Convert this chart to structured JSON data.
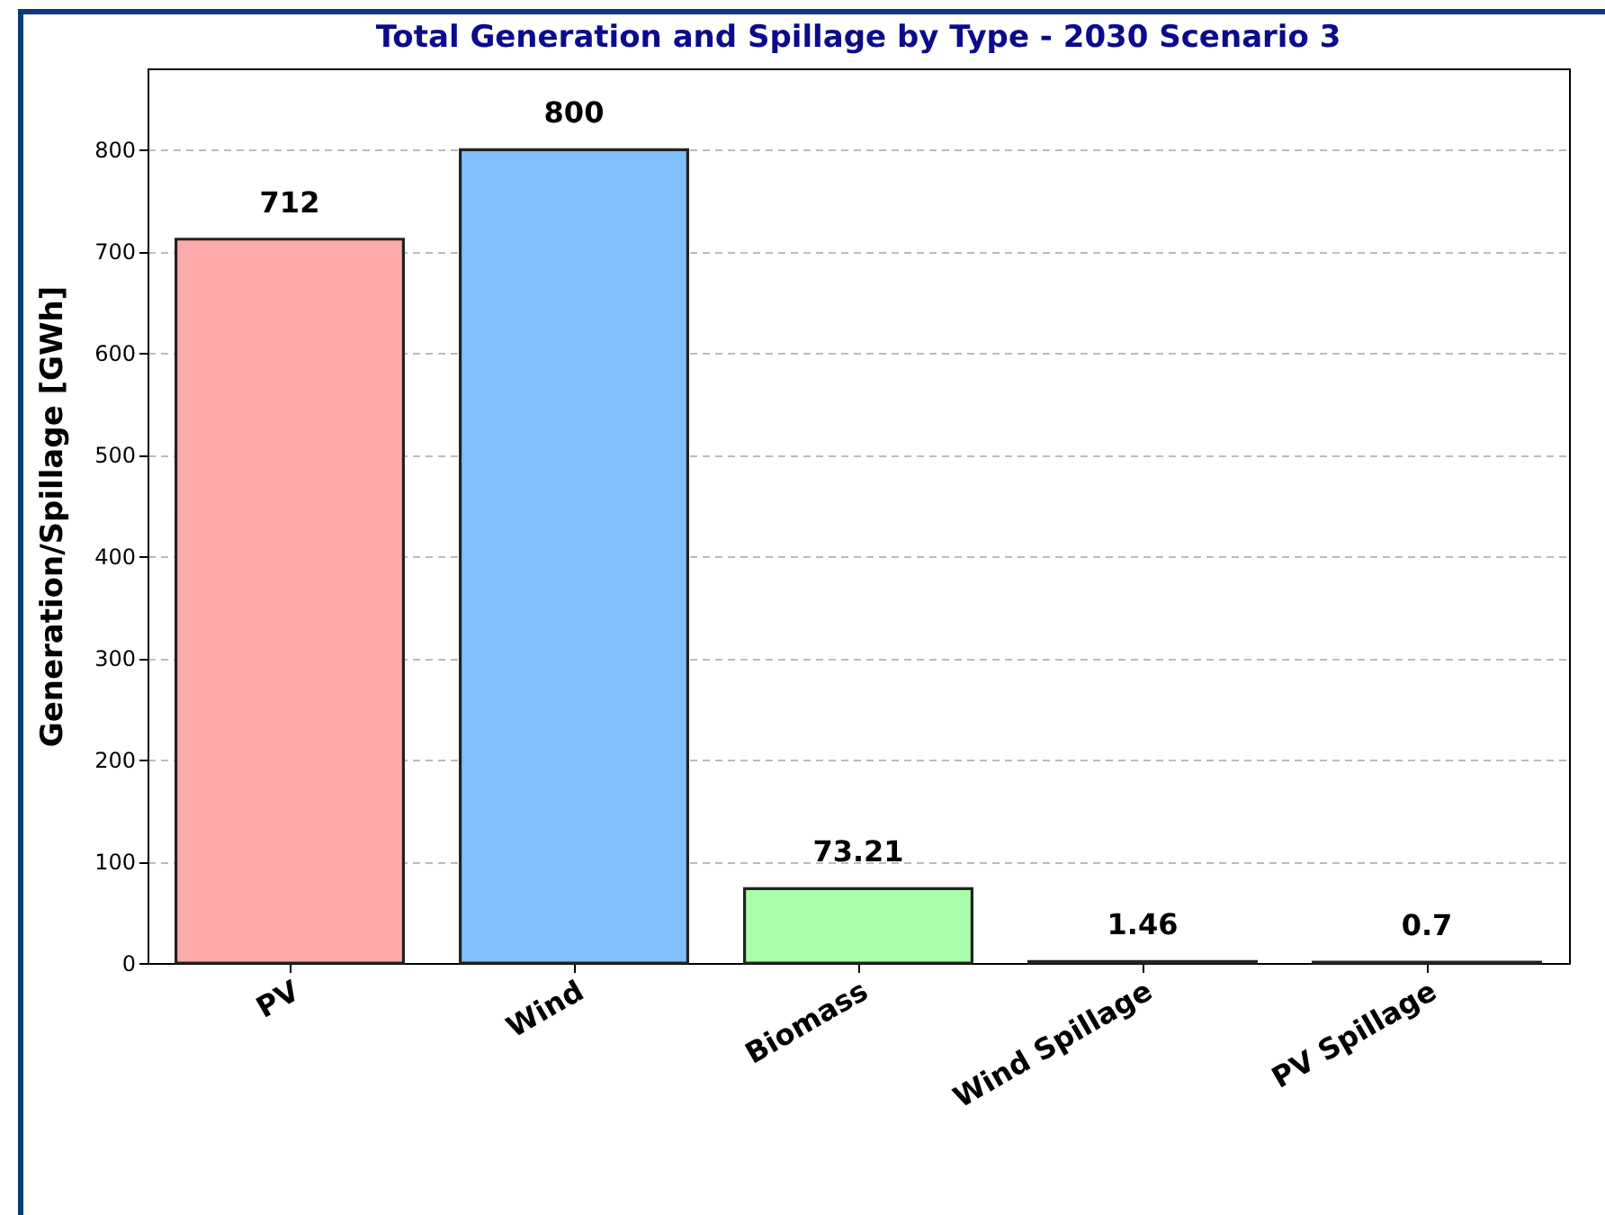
{
  "chart_data": {
    "type": "bar",
    "title": "Total Generation and Spillage by Type - 2030 Scenario 3",
    "ylabel": "Generation/Spillage [GWh]",
    "categories": [
      "PV",
      "Wind",
      "Biomass",
      "Wind Spillage",
      "PV Spillage"
    ],
    "values": [
      712,
      800,
      73.21,
      1.46,
      0.7
    ],
    "colors": [
      "#ffaaaa",
      "#80bfff",
      "#aaffaa",
      "#ffcc99",
      "#dda0dd"
    ],
    "ylim": [
      0,
      880
    ],
    "yticks": [
      0,
      100,
      200,
      300,
      400,
      500,
      600,
      700,
      800
    ],
    "grid": "y",
    "data_labels": true
  }
}
